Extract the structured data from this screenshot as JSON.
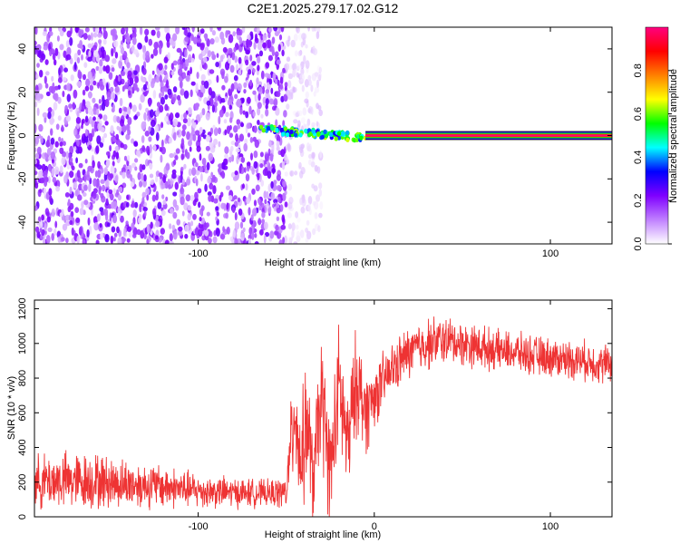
{
  "title": "C2E1.2025.279.17.02.G12",
  "chart_data": [
    {
      "type": "heatmap",
      "xlabel": "Height of straight line (km)",
      "ylabel": "Frequency (Hz)",
      "xlim": [
        -193,
        135
      ],
      "ylim": [
        -50,
        50
      ],
      "xticks": [
        -100,
        0,
        100
      ],
      "xtick_labels": [
        "-100",
        "",
        "100"
      ],
      "yticks": [
        -40,
        -20,
        0,
        20,
        40
      ],
      "ytick_labels": [
        "-40",
        "-20",
        "0",
        "20",
        "40"
      ],
      "colorbar": {
        "label": "Normalized spectral amplitude",
        "range": [
          0.0,
          1.0
        ],
        "ticks": [
          0.0,
          0.2,
          0.4,
          0.6,
          0.8
        ],
        "tick_labels": [
          "0.0",
          "0.2",
          "0.4",
          "0.6",
          "0.8"
        ],
        "colors": [
          "#ffffff",
          "#c080ff",
          "#7f00ff",
          "#0000ff",
          "#00ffff",
          "#00ff00",
          "#ffff00",
          "#ff8000",
          "#ff0000",
          "#ff0080"
        ]
      },
      "regions": [
        {
          "name": "noise",
          "x_range": [
            -193,
            -50
          ],
          "freq_range": [
            -50,
            50
          ],
          "amplitude": 0.1
        },
        {
          "name": "faint",
          "x_range": [
            -50,
            -30
          ],
          "freq_range": [
            -50,
            50
          ],
          "amplitude": 0.03
        },
        {
          "name": "acquisition",
          "x_range": [
            -65,
            -5
          ],
          "freq_range": [
            -4,
            4
          ],
          "amplitude": 0.4
        },
        {
          "name": "carrier",
          "x_range": [
            -5,
            135
          ],
          "freq_range": [
            -1.5,
            1.5
          ],
          "amplitude": 1.0
        }
      ]
    },
    {
      "type": "line",
      "xlabel": "Height of straight line (km)",
      "ylabel": "SNR (10 * v/v)",
      "xlim": [
        -193,
        135
      ],
      "ylim": [
        0,
        1250
      ],
      "xticks": [
        -100,
        0,
        100
      ],
      "xtick_labels": [
        "-100",
        "0",
        "100"
      ],
      "yticks": [
        0,
        200,
        400,
        600,
        800,
        1000,
        1200
      ],
      "ytick_labels": [
        "0",
        "200",
        "400",
        "600",
        "800",
        "1000",
        "1200"
      ],
      "series_color": "#ee3333",
      "series": [
        {
          "x": [
            -193,
            -180,
            -160,
            -140,
            -120,
            -100,
            -80,
            -60,
            -50,
            -45,
            -42,
            -38,
            -35,
            -30,
            -25,
            -20,
            -15,
            -10,
            -5,
            0,
            10,
            20,
            30,
            40,
            50,
            60,
            70,
            80,
            90,
            100,
            110,
            120,
            130,
            135
          ],
          "y": [
            200,
            210,
            205,
            190,
            175,
            150,
            140,
            135,
            140,
            650,
            300,
            550,
            200,
            700,
            250,
            750,
            400,
            800,
            600,
            700,
            850,
            950,
            1000,
            1020,
            1000,
            980,
            960,
            950,
            930,
            920,
            910,
            900,
            880,
            890
          ],
          "spread": [
            120,
            130,
            130,
            110,
            100,
            80,
            70,
            60,
            80,
            300,
            250,
            300,
            200,
            300,
            250,
            300,
            250,
            250,
            200,
            150,
            120,
            120,
            120,
            110,
            100,
            100,
            90,
            90,
            90,
            90,
            90,
            90,
            90,
            90
          ]
        }
      ]
    }
  ]
}
